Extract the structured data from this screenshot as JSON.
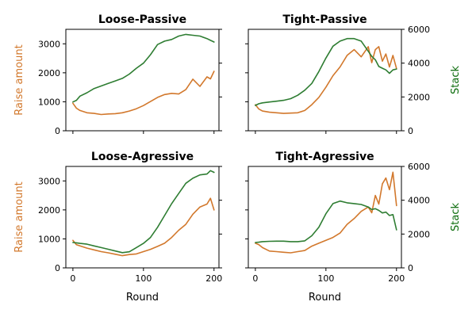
{
  "colors": {
    "raise": "#d2782c",
    "stack": "#2e7d32",
    "stack_axis_text": "#0a6b0a",
    "frame": "#000000"
  },
  "labels": {
    "left_ylabel": "Raise amount",
    "right_ylabel": "Stack",
    "xlabel": "Round"
  },
  "chart_data": [
    {
      "type": "line",
      "title": "Loose-Passive",
      "xlim": [
        -10,
        207
      ],
      "xticks": [
        0,
        100,
        200
      ],
      "show_xticklabels": false,
      "ylim_left": [
        0,
        3500
      ],
      "yticks_left": [
        0,
        1000,
        2000,
        3000
      ],
      "ylim_right": [
        0,
        6000
      ],
      "yticks_right": [
        0,
        2000,
        4000,
        6000
      ],
      "show_left_axis_labels": true,
      "show_right_axis_labels": false,
      "series": [
        {
          "name": "Raise amount",
          "axis": "left",
          "x": [
            0,
            5,
            10,
            20,
            30,
            40,
            50,
            60,
            70,
            80,
            90,
            100,
            110,
            120,
            130,
            140,
            150,
            160,
            170,
            180,
            190,
            195,
            200
          ],
          "y": [
            950,
            780,
            700,
            620,
            600,
            560,
            580,
            590,
            620,
            680,
            760,
            870,
            1010,
            1150,
            1250,
            1290,
            1270,
            1420,
            1780,
            1530,
            1860,
            1790,
            2050
          ]
        },
        {
          "name": "Stack",
          "axis": "right",
          "x": [
            0,
            5,
            10,
            20,
            30,
            40,
            50,
            60,
            70,
            80,
            90,
            100,
            110,
            120,
            130,
            140,
            150,
            160,
            170,
            180,
            190,
            195,
            200
          ],
          "y": [
            1700,
            1800,
            2050,
            2250,
            2500,
            2650,
            2800,
            2950,
            3100,
            3350,
            3700,
            4000,
            4500,
            5100,
            5300,
            5400,
            5600,
            5700,
            5650,
            5600,
            5450,
            5350,
            5250
          ]
        }
      ]
    },
    {
      "type": "line",
      "title": "Tight-Passive",
      "xlim": [
        -10,
        207
      ],
      "xticks": [
        0,
        100,
        200
      ],
      "show_xticklabels": false,
      "ylim_left": [
        0,
        3500
      ],
      "yticks_left": [
        0,
        1000,
        2000,
        3000
      ],
      "ylim_right": [
        0,
        6000
      ],
      "yticks_right": [
        0,
        2000,
        4000,
        6000
      ],
      "show_left_axis_labels": false,
      "show_right_axis_labels": true,
      "series": [
        {
          "name": "Raise amount",
          "axis": "left",
          "x": [
            0,
            5,
            10,
            20,
            30,
            40,
            50,
            60,
            70,
            80,
            90,
            100,
            110,
            120,
            130,
            140,
            150,
            160,
            165,
            170,
            175,
            180,
            185,
            190,
            195,
            200
          ],
          "y": [
            900,
            750,
            680,
            640,
            620,
            600,
            610,
            620,
            700,
            900,
            1150,
            1500,
            1900,
            2200,
            2600,
            2800,
            2550,
            2900,
            2350,
            2800,
            2900,
            2400,
            2650,
            2200,
            2600,
            2150
          ]
        },
        {
          "name": "Stack",
          "axis": "right",
          "x": [
            0,
            5,
            10,
            20,
            30,
            40,
            50,
            60,
            70,
            80,
            90,
            100,
            110,
            120,
            130,
            140,
            150,
            160,
            165,
            170,
            175,
            180,
            185,
            190,
            195,
            200
          ],
          "y": [
            1500,
            1600,
            1650,
            1700,
            1750,
            1800,
            1900,
            2100,
            2400,
            2800,
            3500,
            4300,
            5000,
            5300,
            5450,
            5450,
            5300,
            4700,
            4400,
            4200,
            3800,
            3700,
            3600,
            3400,
            3600,
            3650
          ]
        }
      ]
    },
    {
      "type": "line",
      "title": "Loose-Agressive",
      "xlim": [
        -10,
        207
      ],
      "xticks": [
        0,
        100,
        200
      ],
      "show_xticklabels": true,
      "xlabel": "Round",
      "ylim_left": [
        0,
        3500
      ],
      "yticks_left": [
        0,
        1000,
        2000,
        3000
      ],
      "ylim_right": [
        0,
        6000
      ],
      "yticks_right": [
        0,
        2000,
        4000,
        6000
      ],
      "show_left_axis_labels": true,
      "show_right_axis_labels": false,
      "series": [
        {
          "name": "Raise amount",
          "axis": "left",
          "x": [
            0,
            5,
            10,
            20,
            30,
            40,
            50,
            60,
            70,
            80,
            90,
            100,
            110,
            120,
            130,
            140,
            150,
            160,
            170,
            180,
            190,
            195,
            200
          ],
          "y": [
            950,
            800,
            760,
            680,
            620,
            560,
            520,
            470,
            420,
            460,
            480,
            560,
            640,
            740,
            850,
            1050,
            1300,
            1500,
            1850,
            2100,
            2200,
            2400,
            2000
          ]
        },
        {
          "name": "Stack",
          "axis": "right",
          "x": [
            0,
            5,
            10,
            20,
            30,
            40,
            50,
            60,
            70,
            80,
            90,
            100,
            110,
            120,
            130,
            140,
            150,
            160,
            170,
            180,
            190,
            195,
            200
          ],
          "y": [
            1500,
            1480,
            1450,
            1400,
            1300,
            1200,
            1100,
            1000,
            900,
            950,
            1200,
            1450,
            1800,
            2400,
            3100,
            3800,
            4400,
            5000,
            5300,
            5500,
            5550,
            5750,
            5650
          ]
        }
      ]
    },
    {
      "type": "line",
      "title": "Tight-Agressive",
      "xlim": [
        -10,
        207
      ],
      "xticks": [
        0,
        100,
        200
      ],
      "show_xticklabels": true,
      "xlabel": "Round",
      "ylim_left": [
        0,
        3500
      ],
      "yticks_left": [
        0,
        1000,
        2000,
        3000
      ],
      "ylim_right": [
        0,
        6000
      ],
      "yticks_right": [
        0,
        2000,
        4000,
        6000
      ],
      "show_left_axis_labels": false,
      "show_right_axis_labels": true,
      "series": [
        {
          "name": "Raise amount",
          "axis": "left",
          "x": [
            0,
            5,
            10,
            20,
            30,
            40,
            50,
            60,
            70,
            80,
            90,
            100,
            110,
            120,
            130,
            140,
            150,
            160,
            165,
            170,
            175,
            180,
            185,
            190,
            195,
            200
          ],
          "y": [
            850,
            800,
            700,
            580,
            560,
            540,
            520,
            560,
            600,
            750,
            850,
            950,
            1050,
            1200,
            1500,
            1700,
            1950,
            2100,
            1900,
            2500,
            2200,
            2900,
            3100,
            2700,
            3300,
            2150
          ]
        },
        {
          "name": "Stack",
          "axis": "right",
          "x": [
            0,
            5,
            10,
            20,
            30,
            40,
            50,
            60,
            70,
            80,
            90,
            100,
            110,
            120,
            130,
            140,
            150,
            160,
            165,
            170,
            175,
            180,
            185,
            190,
            195,
            200
          ],
          "y": [
            1500,
            1520,
            1550,
            1570,
            1580,
            1580,
            1550,
            1550,
            1600,
            1900,
            2400,
            3200,
            3800,
            3950,
            3850,
            3800,
            3750,
            3600,
            3450,
            3500,
            3400,
            3250,
            3300,
            3100,
            3150,
            2250
          ]
        }
      ]
    }
  ]
}
